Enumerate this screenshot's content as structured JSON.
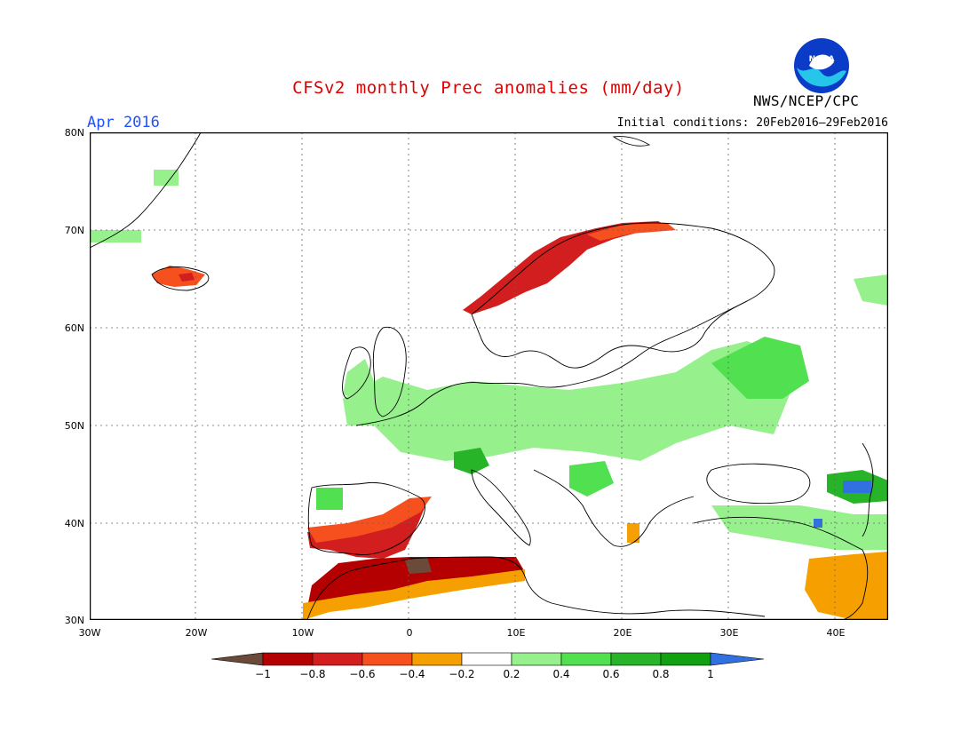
{
  "title": "CFSv2 monthly Prec anomalies (mm/day)",
  "valid_month": "Apr 2016",
  "initial_conditions": "Initial conditions: 20Feb2016–29Feb2016",
  "agency": "NWS/NCEP/CPC",
  "logo_text": "NOAA",
  "lat_ticks": [
    "80N",
    "70N",
    "60N",
    "50N",
    "40N",
    "30N"
  ],
  "lon_ticks": [
    "30W",
    "20W",
    "10W",
    "0",
    "10E",
    "20E",
    "30E",
    "40E"
  ],
  "colorbar": {
    "labels": [
      "−1",
      "−0.8",
      "−0.6",
      "−0.4",
      "−0.2",
      "0.2",
      "0.4",
      "0.6",
      "0.8",
      "1"
    ],
    "colors": [
      "#6b4a3a",
      "#b40000",
      "#d21e1e",
      "#f5501e",
      "#f5a000",
      "#ffffff",
      "#96f08c",
      "#50e050",
      "#28b428",
      "#10a010",
      "#3070e0"
    ]
  },
  "anomaly_regions": [
    {
      "name": "norway-coast-dry",
      "category": -0.8
    },
    {
      "name": "iceland-dry",
      "category": -0.6
    },
    {
      "name": "iberia-dry",
      "category": -0.8
    },
    {
      "name": "north-africa-dry",
      "category": -0.8
    },
    {
      "name": "north-africa-extreme",
      "category": -1
    },
    {
      "name": "east-med-dry",
      "category": -0.4
    },
    {
      "name": "central-europe-wet",
      "category": 0.4
    },
    {
      "name": "alps-wet",
      "category": 0.6
    },
    {
      "name": "russia-wet",
      "category": 0.4
    },
    {
      "name": "caucasus-wet",
      "category": 0.8
    },
    {
      "name": "caucasus-extreme",
      "category": 1
    },
    {
      "name": "greenland-wet",
      "category": 0.2
    }
  ]
}
